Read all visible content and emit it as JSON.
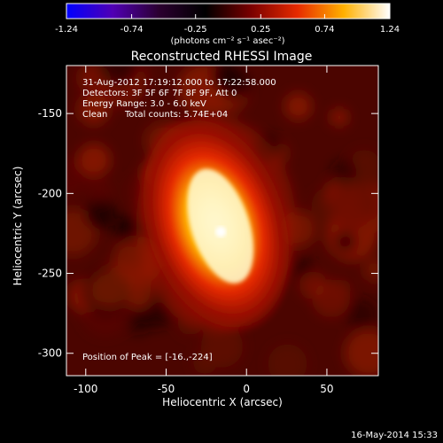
{
  "chart_data": {
    "type": "heatmap",
    "title": "Reconstructed RHESSI Image",
    "xlabel": "Heliocentric X (arcsec)",
    "ylabel": "Heliocentric Y (arcsec)",
    "xlim": [
      -112,
      82
    ],
    "ylim": [
      -314,
      -120
    ],
    "xticks": [
      -100,
      -50,
      0,
      50
    ],
    "yticks": [
      -150,
      -200,
      -250,
      -300
    ],
    "colorbar": {
      "ticks": [
        "-1.24",
        "-0.74",
        "-0.25",
        "0.25",
        "0.74",
        "1.24"
      ],
      "unit_label": "(photons cm⁻² s⁻¹ asec⁻²)",
      "range": [
        -1.24,
        1.24
      ],
      "colors": [
        "#0000ff",
        "#5000b4",
        "#2b0030",
        "#000000",
        "#7a0000",
        "#e62a00",
        "#ffb000",
        "#ffffff"
      ]
    },
    "annotations": [
      "31-Aug-2012 17:19:12.000 to 17:22:58.000",
      "Detectors: 3F 5F 6F 7F 8F 9F, Att 0",
      "Energy Range: 3.0 - 6.0 keV",
      "Clean",
      "Total counts: 5.74E+04"
    ],
    "peak_label": "Position of Peak = [-16.,-224]",
    "peak": {
      "x": -16,
      "y": -224,
      "value": 1.24
    },
    "source": {
      "x_center": -19,
      "y_center": -219,
      "length_arcsec": 48,
      "width_arcsec": 20
    }
  },
  "footer": {
    "date": "16-May-2014 15:33"
  }
}
